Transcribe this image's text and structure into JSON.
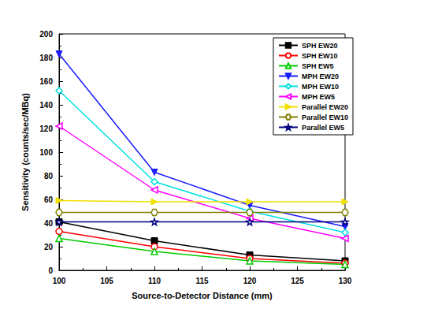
{
  "chart_data": {
    "type": "line",
    "x_label": "Source-to-Detector Distance (mm)",
    "y_label": "Sensitivity (counts/sec/MBq)",
    "x": [
      100,
      110,
      120,
      130
    ],
    "xlim": [
      100,
      130
    ],
    "xticks": [
      100,
      105,
      110,
      115,
      120,
      125,
      130
    ],
    "ylim": [
      0,
      200
    ],
    "yticks": [
      0,
      20,
      40,
      60,
      80,
      100,
      120,
      140,
      160,
      180,
      200
    ],
    "grid": false,
    "legend": "top-right",
    "series": [
      {
        "name": "SPH EW20",
        "color": "#000000",
        "marker": "square",
        "values": [
          41,
          25,
          13,
          8
        ]
      },
      {
        "name": "SPH EW10",
        "color": "#ff0000",
        "marker": "circle_open",
        "values": [
          33,
          20,
          10,
          6
        ]
      },
      {
        "name": "SPH EW5",
        "color": "#00cc00",
        "marker": "triangle_open",
        "values": [
          27,
          16,
          8,
          5
        ]
      },
      {
        "name": "MPH EW20",
        "color": "#1a1aff",
        "marker": "triangle_down",
        "values": [
          183,
          83,
          55,
          37
        ]
      },
      {
        "name": "MPH EW10",
        "color": "#00e0e0",
        "marker": "diamond_open",
        "values": [
          152,
          75,
          50,
          32
        ]
      },
      {
        "name": "MPH EW5",
        "color": "#ff00ff",
        "marker": "triangle_left_open",
        "values": [
          122,
          68,
          44,
          27
        ]
      },
      {
        "name": "Parallel EW20",
        "color": "#f0e000",
        "marker": "triangle_right",
        "values": [
          59,
          58,
          58,
          58
        ]
      },
      {
        "name": "Parallel EW10",
        "color": "#808000",
        "marker": "hexagon_open",
        "values": [
          49,
          49,
          49,
          49
        ]
      },
      {
        "name": "Parallel EW5",
        "color": "#000080",
        "marker": "star_open",
        "values": [
          41,
          41,
          41,
          41
        ]
      }
    ]
  }
}
